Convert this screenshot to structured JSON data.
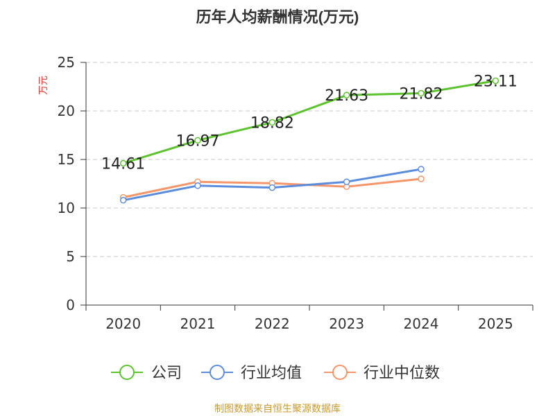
{
  "chart_data": {
    "type": "line",
    "title": "历年人均薪酬情况(万元)",
    "ylabel": "万元",
    "xlabel": "",
    "ylim": [
      0,
      25
    ],
    "yticks": [
      0,
      5,
      10,
      15,
      20,
      25
    ],
    "categories": [
      "2020",
      "2021",
      "2022",
      "2023",
      "2024",
      "2025"
    ],
    "series": [
      {
        "name": "公司",
        "color": "#5cc22e",
        "values": [
          14.61,
          16.97,
          18.82,
          21.63,
          21.82,
          23.11
        ],
        "show_labels": true
      },
      {
        "name": "行业均值",
        "color": "#5b8ddc",
        "values": [
          10.8,
          12.3,
          12.1,
          12.7,
          14.0,
          null
        ],
        "show_labels": false
      },
      {
        "name": "行业中位数",
        "color": "#f5956a",
        "values": [
          11.1,
          12.7,
          12.55,
          12.2,
          13.0,
          null
        ],
        "show_labels": false
      }
    ],
    "legend_position": "bottom",
    "grid": true,
    "source": "制图数据来自恒生聚源数据库"
  }
}
